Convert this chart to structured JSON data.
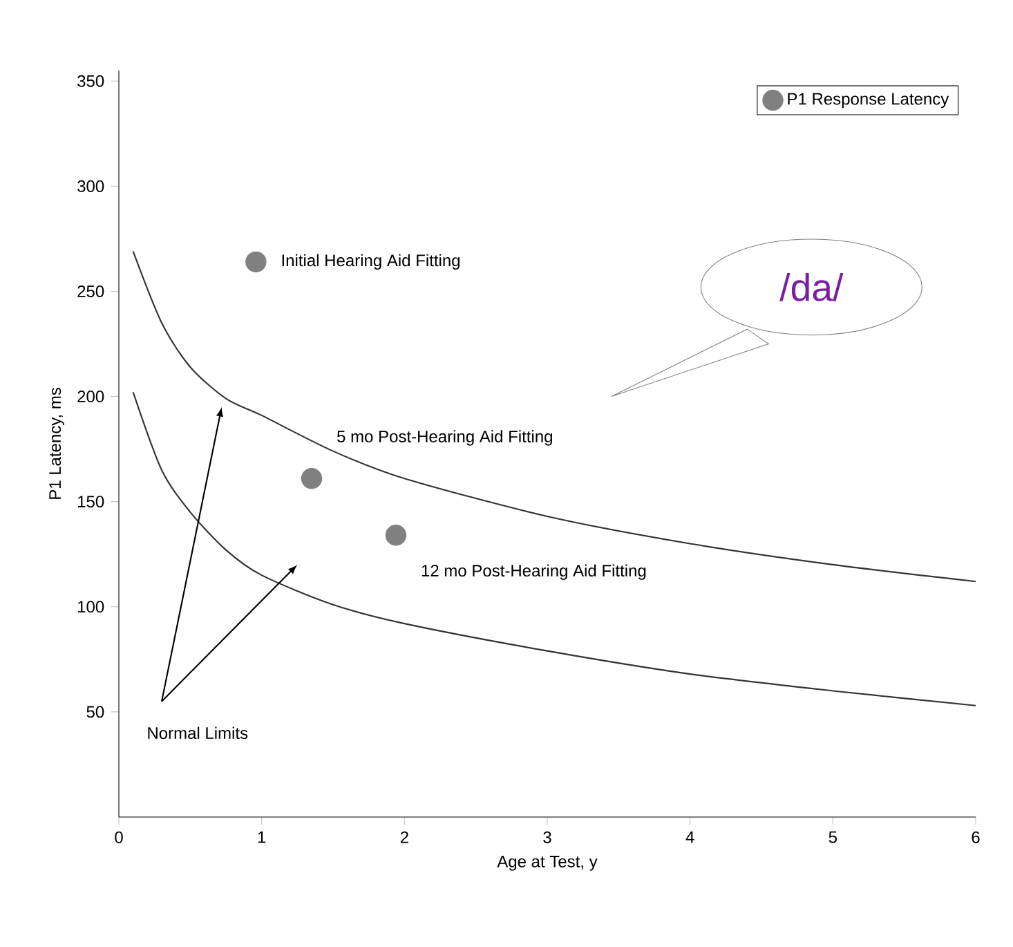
{
  "chart_data": {
    "type": "scatter",
    "xlabel": "Age at Test, y",
    "ylabel": "P1 Latency, ms",
    "xlim": [
      0,
      6
    ],
    "ylim": [
      0,
      355
    ],
    "xticks": [
      0,
      1,
      2,
      3,
      4,
      5,
      6
    ],
    "yticks": [
      50,
      100,
      150,
      200,
      250,
      300,
      350
    ],
    "grid": false,
    "legend": "top right",
    "series": [
      {
        "name": "P1 Response Latency",
        "type": "scatter",
        "color": "#808080",
        "x": [
          0.96,
          1.35,
          1.94
        ],
        "values": [
          264,
          161,
          134
        ]
      },
      {
        "type": "line",
        "color": "#333333",
        "line_style": "solid",
        "x": [
          0.1,
          0.3,
          0.5,
          0.75,
          1,
          1.5,
          2,
          3,
          4,
          5,
          6
        ],
        "values": [
          269,
          235,
          214,
          199,
          191,
          174,
          161,
          143,
          130,
          120,
          112
        ]
      },
      {
        "type": "line",
        "color": "#333333",
        "line_style": "solid",
        "x": [
          0.1,
          0.3,
          0.5,
          0.75,
          1,
          1.5,
          2,
          3,
          4,
          5,
          6
        ],
        "values": [
          202,
          165,
          145,
          127,
          115,
          101,
          92,
          79,
          68,
          60,
          53
        ]
      }
    ],
    "annotations": [
      {
        "text": "Initial Hearing Aid Fitting",
        "x": 0.96,
        "y": 264
      },
      {
        "text": "5 mo Post-Hearing Aid Fitting",
        "x": 1.35,
        "y": 161
      },
      {
        "text": "12 mo Post-Hearing Aid Fitting",
        "x": 1.94,
        "y": 134
      },
      "Normal Limits",
      "/da/"
    ]
  }
}
